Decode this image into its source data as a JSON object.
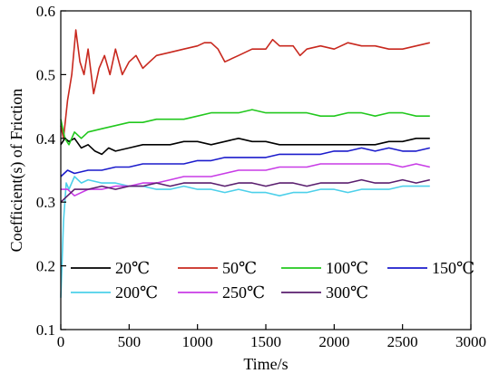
{
  "chart_data": {
    "type": "line",
    "title": "",
    "xlabel": "Time/s",
    "ylabel": "Coefficient(s) of Friction",
    "xlim": [
      0,
      3000
    ],
    "ylim": [
      0.1,
      0.6
    ],
    "xticks": [
      0,
      500,
      1000,
      1500,
      2000,
      2500,
      3000
    ],
    "yticks": [
      0.1,
      0.2,
      0.3,
      0.4,
      0.5,
      0.6
    ],
    "xtick_labels": [
      "0",
      "500",
      "1000",
      "1500",
      "2000",
      "2500",
      "3000"
    ],
    "ytick_labels": [
      "0.1",
      "0.2",
      "0.3",
      "0.4",
      "0.5",
      "0.6"
    ],
    "grid": false,
    "legend": {
      "placement": "bottom",
      "columns": 4
    },
    "series": [
      {
        "name": "20℃",
        "color": "#000000",
        "x": [
          0,
          30,
          60,
          100,
          150,
          200,
          250,
          300,
          350,
          400,
          500,
          600,
          700,
          800,
          900,
          1000,
          1100,
          1200,
          1300,
          1400,
          1500,
          1600,
          1700,
          1800,
          1900,
          2000,
          2100,
          2200,
          2300,
          2400,
          2500,
          2600,
          2700
        ],
        "y": [
          0.39,
          0.4,
          0.395,
          0.4,
          0.385,
          0.39,
          0.38,
          0.375,
          0.385,
          0.38,
          0.385,
          0.39,
          0.39,
          0.39,
          0.395,
          0.395,
          0.39,
          0.395,
          0.4,
          0.395,
          0.395,
          0.39,
          0.39,
          0.39,
          0.39,
          0.39,
          0.39,
          0.39,
          0.39,
          0.395,
          0.395,
          0.4,
          0.4
        ]
      },
      {
        "name": "50℃",
        "color": "#c8281e",
        "x": [
          0,
          20,
          50,
          80,
          110,
          140,
          170,
          200,
          240,
          280,
          320,
          360,
          400,
          450,
          500,
          550,
          600,
          650,
          700,
          800,
          900,
          1000,
          1050,
          1100,
          1150,
          1200,
          1300,
          1400,
          1500,
          1550,
          1600,
          1700,
          1750,
          1800,
          1900,
          2000,
          2100,
          2200,
          2300,
          2400,
          2500,
          2600,
          2700
        ],
        "y": [
          0.42,
          0.4,
          0.46,
          0.5,
          0.57,
          0.52,
          0.5,
          0.54,
          0.47,
          0.51,
          0.53,
          0.5,
          0.54,
          0.5,
          0.52,
          0.53,
          0.51,
          0.52,
          0.53,
          0.535,
          0.54,
          0.545,
          0.55,
          0.55,
          0.54,
          0.52,
          0.53,
          0.54,
          0.54,
          0.555,
          0.545,
          0.545,
          0.53,
          0.54,
          0.545,
          0.54,
          0.55,
          0.545,
          0.545,
          0.54,
          0.54,
          0.545,
          0.55
        ]
      },
      {
        "name": "100℃",
        "color": "#22c81e",
        "x": [
          0,
          30,
          60,
          100,
          150,
          200,
          300,
          400,
          500,
          600,
          700,
          800,
          900,
          1000,
          1100,
          1200,
          1300,
          1400,
          1500,
          1600,
          1700,
          1800,
          1900,
          2000,
          2100,
          2200,
          2300,
          2400,
          2500,
          2600,
          2700
        ],
        "y": [
          0.43,
          0.4,
          0.39,
          0.41,
          0.4,
          0.41,
          0.415,
          0.42,
          0.425,
          0.425,
          0.43,
          0.43,
          0.43,
          0.435,
          0.44,
          0.44,
          0.44,
          0.445,
          0.44,
          0.44,
          0.44,
          0.44,
          0.435,
          0.435,
          0.44,
          0.44,
          0.435,
          0.44,
          0.44,
          0.435,
          0.435
        ]
      },
      {
        "name": "150℃",
        "color": "#1c1ccc",
        "x": [
          0,
          50,
          100,
          200,
          300,
          400,
          500,
          600,
          700,
          800,
          900,
          1000,
          1100,
          1200,
          1300,
          1400,
          1500,
          1600,
          1700,
          1800,
          1900,
          2000,
          2100,
          2200,
          2300,
          2400,
          2500,
          2600,
          2700
        ],
        "y": [
          0.34,
          0.35,
          0.345,
          0.35,
          0.35,
          0.355,
          0.355,
          0.36,
          0.36,
          0.36,
          0.36,
          0.365,
          0.365,
          0.37,
          0.37,
          0.37,
          0.37,
          0.375,
          0.375,
          0.375,
          0.375,
          0.38,
          0.38,
          0.385,
          0.38,
          0.385,
          0.38,
          0.38,
          0.385
        ]
      },
      {
        "name": "200℃",
        "color": "#4dd0ea",
        "x": [
          0,
          20,
          40,
          60,
          100,
          150,
          200,
          300,
          400,
          500,
          600,
          700,
          800,
          900,
          1000,
          1100,
          1200,
          1300,
          1400,
          1500,
          1600,
          1700,
          1800,
          1900,
          2000,
          2100,
          2200,
          2300,
          2400,
          2500,
          2600,
          2700
        ],
        "y": [
          0.15,
          0.27,
          0.33,
          0.32,
          0.34,
          0.33,
          0.335,
          0.33,
          0.33,
          0.325,
          0.325,
          0.32,
          0.32,
          0.325,
          0.32,
          0.32,
          0.315,
          0.32,
          0.315,
          0.315,
          0.31,
          0.315,
          0.315,
          0.32,
          0.32,
          0.315,
          0.32,
          0.32,
          0.32,
          0.325,
          0.325,
          0.325
        ]
      },
      {
        "name": "250℃",
        "color": "#c83ce6",
        "x": [
          0,
          50,
          100,
          200,
          300,
          400,
          500,
          600,
          700,
          800,
          900,
          1000,
          1100,
          1200,
          1300,
          1400,
          1500,
          1600,
          1700,
          1800,
          1900,
          2000,
          2100,
          2200,
          2300,
          2400,
          2500,
          2600,
          2700
        ],
        "y": [
          0.32,
          0.32,
          0.31,
          0.32,
          0.32,
          0.325,
          0.325,
          0.33,
          0.33,
          0.335,
          0.34,
          0.34,
          0.34,
          0.345,
          0.35,
          0.35,
          0.35,
          0.355,
          0.355,
          0.355,
          0.36,
          0.36,
          0.36,
          0.36,
          0.36,
          0.36,
          0.355,
          0.36,
          0.355
        ]
      },
      {
        "name": "300℃",
        "color": "#5a1e6e",
        "x": [
          0,
          50,
          100,
          200,
          300,
          400,
          500,
          600,
          700,
          800,
          900,
          1000,
          1100,
          1200,
          1300,
          1400,
          1500,
          1600,
          1700,
          1800,
          1900,
          2000,
          2100,
          2200,
          2300,
          2400,
          2500,
          2600,
          2700
        ],
        "y": [
          0.3,
          0.31,
          0.32,
          0.32,
          0.325,
          0.32,
          0.325,
          0.325,
          0.33,
          0.325,
          0.33,
          0.33,
          0.33,
          0.325,
          0.33,
          0.33,
          0.325,
          0.33,
          0.33,
          0.325,
          0.33,
          0.33,
          0.33,
          0.335,
          0.33,
          0.33,
          0.335,
          0.33,
          0.335
        ]
      }
    ]
  }
}
